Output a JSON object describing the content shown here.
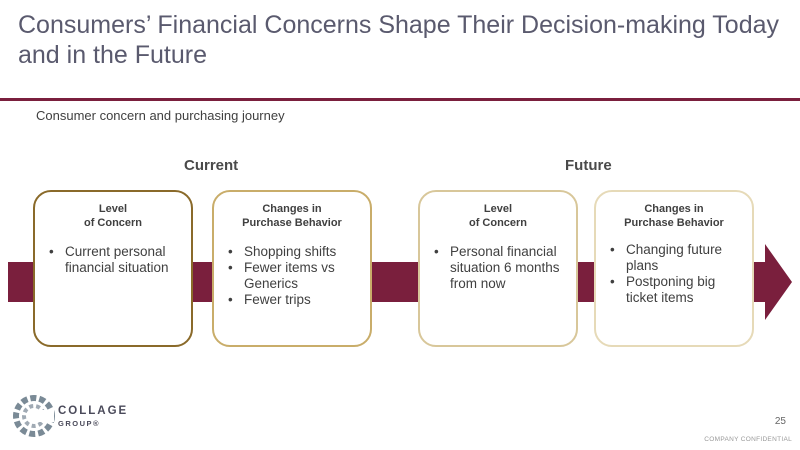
{
  "slide": {
    "title": "Consumers’ Financial Concerns Shape Their Decision-making Today and in the Future",
    "subtitle": "Consumer concern and purchasing journey",
    "labels": {
      "current": "Current",
      "future": "Future"
    },
    "accent_color": "#7a1f3d",
    "cards": [
      {
        "heading": "Level\nof Concern",
        "border_color": "#8a6a2a",
        "bullets": [
          "Current personal financial situation"
        ]
      },
      {
        "heading": "Changes in\nPurchase Behavior",
        "border_color": "#c9ad6a",
        "bullets": [
          "Shopping shifts",
          "Fewer items vs Generics",
          "Fewer trips"
        ]
      },
      {
        "heading": "Level\nof Concern",
        "border_color": "#d8c79a",
        "bullets": [
          "Personal financial situation 6 months from now"
        ]
      },
      {
        "heading": "Changes in\nPurchase Behavior",
        "border_color": "#e6dab8",
        "bullets": [
          "Changing future plans",
          "Postponing big ticket items"
        ]
      }
    ]
  },
  "footer": {
    "logo_name": "COLLAGE",
    "logo_sub": "GROUP®",
    "page_number": "25",
    "confidential": "COMPANY CONFIDENTIAL"
  }
}
